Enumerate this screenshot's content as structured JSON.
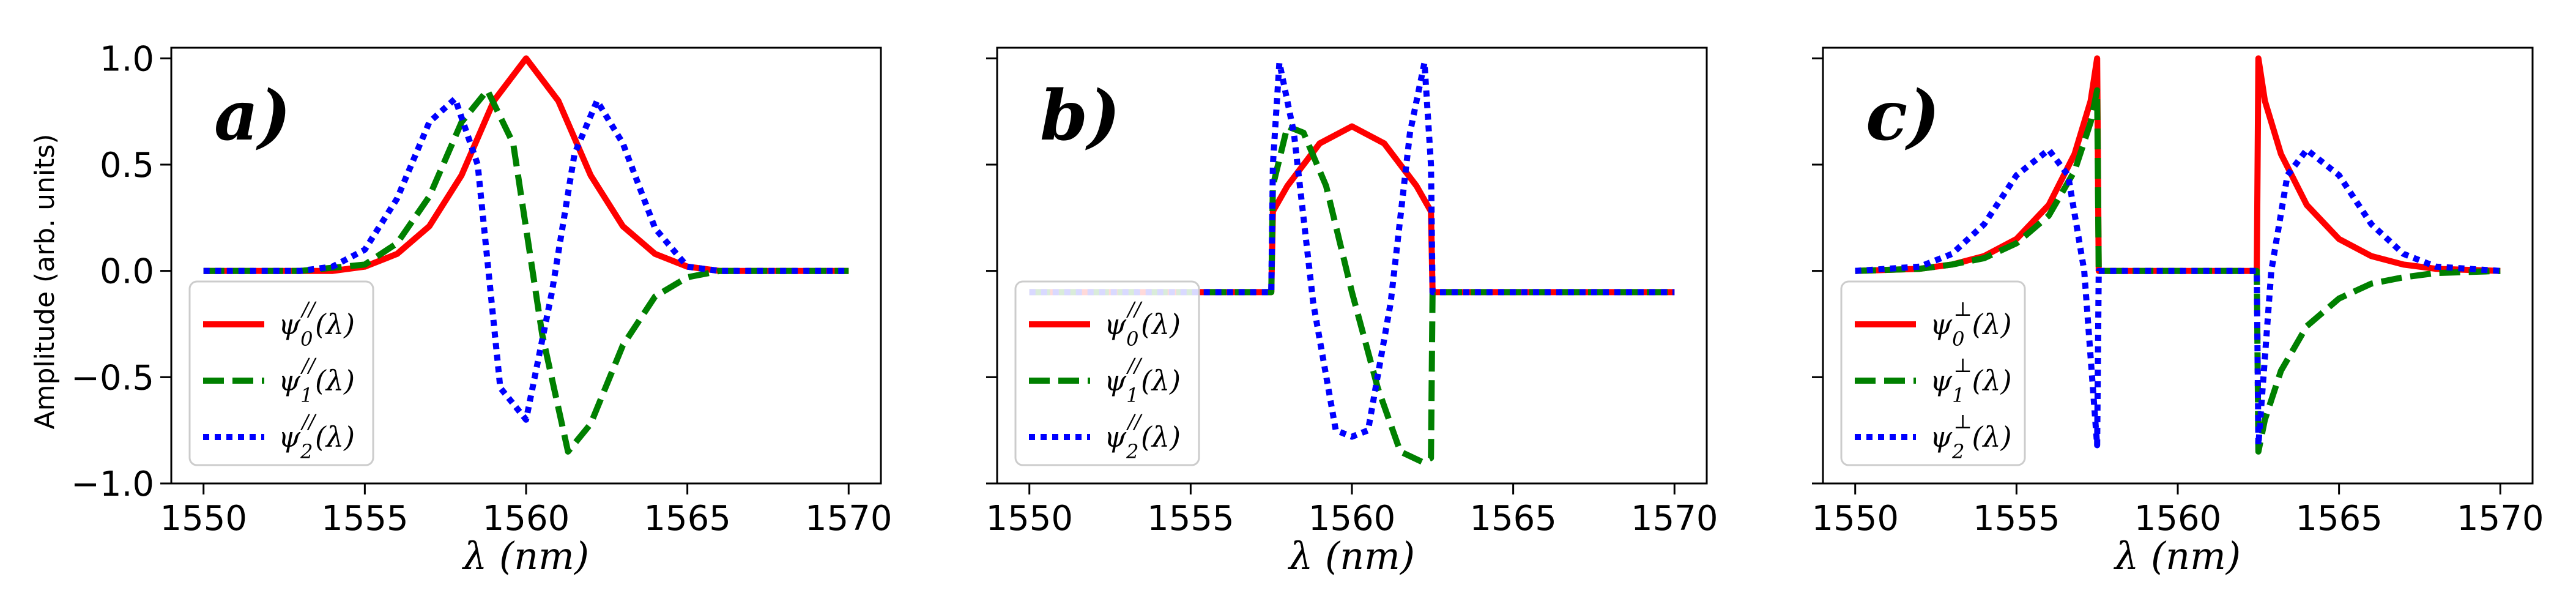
{
  "figure": {
    "ylabel": "Amplitude (arb. units)",
    "xlabel": "λ (nm)",
    "colors": {
      "red": "#ff0000",
      "green": "#008000",
      "blue": "#0000ff"
    }
  },
  "chart_data": [
    {
      "type": "line",
      "panel_label": "a)",
      "xlim": [
        1549,
        1571
      ],
      "ylim": [
        -1.0,
        1.05
      ],
      "xticks": [
        1550,
        1555,
        1560,
        1565,
        1570
      ],
      "yticks": [
        1.0,
        0.5,
        0.0,
        -0.5,
        -1.0
      ],
      "ytick_labels": [
        "1.0",
        "0.5",
        "0.0",
        "−0.5",
        "−1.0"
      ],
      "legend_placement": "lower-left",
      "series": [
        {
          "name": "ψ₀//(λ)",
          "style": "solid",
          "color": "#ff0000",
          "x": [
            1550,
            1552,
            1554,
            1555,
            1556,
            1557,
            1558,
            1559,
            1560,
            1561,
            1562,
            1563,
            1564,
            1565,
            1566,
            1568,
            1570
          ],
          "y": [
            0,
            0,
            0,
            0.02,
            0.08,
            0.21,
            0.45,
            0.8,
            1.0,
            0.8,
            0.45,
            0.21,
            0.08,
            0.02,
            0,
            0,
            0
          ]
        },
        {
          "name": "ψ₁//(λ)",
          "style": "dashed",
          "color": "#008000",
          "x": [
            1550,
            1553,
            1555,
            1556,
            1557,
            1558,
            1558.8,
            1559.6,
            1560.5,
            1561.3,
            1562,
            1563,
            1564,
            1565,
            1566,
            1568,
            1570
          ],
          "y": [
            0,
            0,
            0.03,
            0.13,
            0.35,
            0.7,
            0.85,
            0.6,
            -0.3,
            -0.85,
            -0.72,
            -0.35,
            -0.12,
            -0.03,
            0,
            0,
            0
          ]
        },
        {
          "name": "ψ₂//(λ)",
          "style": "dotted",
          "color": "#0000ff",
          "x": [
            1550,
            1553,
            1554,
            1555,
            1556,
            1557,
            1557.8,
            1558.5,
            1559.2,
            1560,
            1560.8,
            1561.5,
            1562.2,
            1563,
            1564,
            1565,
            1566,
            1570
          ],
          "y": [
            0,
            0,
            0.02,
            0.1,
            0.34,
            0.7,
            0.81,
            0.5,
            -0.55,
            -0.7,
            -0.1,
            0.55,
            0.8,
            0.6,
            0.2,
            0.02,
            0,
            0
          ]
        }
      ]
    },
    {
      "type": "line",
      "panel_label": "b)",
      "xlim": [
        1549,
        1571
      ],
      "ylim": [
        -1.0,
        1.05
      ],
      "xticks": [
        1550,
        1555,
        1560,
        1565,
        1570
      ],
      "yticks": [
        1.0,
        0.5,
        0.0,
        -0.5,
        -1.0
      ],
      "ytick_labels": [
        "",
        "",
        "",
        "",
        ""
      ],
      "legend_placement": "lower-left",
      "series": [
        {
          "name": "ψ₀//(λ)",
          "style": "solid",
          "color": "#ff0000",
          "x": [
            1550,
            1557.5,
            1557.55,
            1558,
            1559,
            1560,
            1561,
            1562,
            1562.45,
            1562.5,
            1570
          ],
          "y": [
            -0.1,
            -0.1,
            0.28,
            0.4,
            0.6,
            0.68,
            0.6,
            0.4,
            0.28,
            -0.1,
            -0.1
          ]
        },
        {
          "name": "ψ₁//(λ)",
          "style": "dashed",
          "color": "#008000",
          "x": [
            1550,
            1557.5,
            1557.55,
            1558,
            1558.5,
            1559.2,
            1560,
            1560.8,
            1561.5,
            1562.2,
            1562.45,
            1562.5,
            1570
          ],
          "y": [
            -0.1,
            -0.1,
            0.4,
            0.68,
            0.65,
            0.4,
            -0.1,
            -0.55,
            -0.85,
            -0.9,
            -0.88,
            -0.1,
            -0.1
          ]
        },
        {
          "name": "ψ₂//(λ)",
          "style": "dotted",
          "color": "#0000ff",
          "x": [
            1550,
            1557.5,
            1557.55,
            1557.75,
            1558.2,
            1558.8,
            1559.5,
            1560,
            1560.5,
            1561.2,
            1561.8,
            1562.25,
            1562.45,
            1562.5,
            1570
          ],
          "y": [
            -0.1,
            -0.1,
            0.5,
            0.98,
            0.65,
            -0.15,
            -0.75,
            -0.78,
            -0.75,
            -0.15,
            0.65,
            0.98,
            0.5,
            -0.1,
            -0.1
          ]
        }
      ]
    },
    {
      "type": "line",
      "panel_label": "c)",
      "xlim": [
        1549,
        1571
      ],
      "ylim": [
        -1.0,
        1.05
      ],
      "xticks": [
        1550,
        1555,
        1560,
        1565,
        1570
      ],
      "yticks": [
        1.0,
        0.5,
        0.0,
        -0.5,
        -1.0
      ],
      "ytick_labels": [
        "",
        "",
        "",
        "",
        ""
      ],
      "legend_placement": "lower-left",
      "series": [
        {
          "name": "ψ₀⊥(λ)",
          "style": "solid",
          "color": "#ff0000",
          "x": [
            1550,
            1552,
            1553,
            1554,
            1555,
            1556,
            1556.8,
            1557.3,
            1557.5,
            1557.55,
            1562.45,
            1562.5,
            1562.7,
            1563.2,
            1564,
            1565,
            1566,
            1567,
            1568,
            1570
          ],
          "y": [
            0,
            0.01,
            0.03,
            0.07,
            0.15,
            0.31,
            0.55,
            0.8,
            1.0,
            0,
            0,
            1.0,
            0.8,
            0.55,
            0.31,
            0.15,
            0.07,
            0.03,
            0.01,
            0
          ]
        },
        {
          "name": "ψ₁⊥(λ)",
          "style": "dashed",
          "color": "#008000",
          "x": [
            1550,
            1552,
            1553,
            1554,
            1555,
            1556,
            1556.8,
            1557.3,
            1557.5,
            1557.55,
            1562.45,
            1562.5,
            1562.7,
            1563.2,
            1564,
            1565,
            1566,
            1567,
            1568,
            1570
          ],
          "y": [
            0,
            0.01,
            0.03,
            0.06,
            0.13,
            0.26,
            0.47,
            0.7,
            0.85,
            0,
            0,
            -0.85,
            -0.7,
            -0.47,
            -0.26,
            -0.13,
            -0.06,
            -0.03,
            -0.01,
            0
          ]
        },
        {
          "name": "ψ₂⊥(λ)",
          "style": "dotted",
          "color": "#0000ff",
          "x": [
            1550,
            1552,
            1553,
            1554,
            1555,
            1556,
            1556.6,
            1557.1,
            1557.5,
            1557.55,
            1562.45,
            1562.5,
            1562.9,
            1563.4,
            1564,
            1565,
            1566,
            1567,
            1568,
            1570
          ],
          "y": [
            0,
            0.02,
            0.08,
            0.22,
            0.45,
            0.57,
            0.45,
            0.0,
            -0.82,
            0,
            0,
            -0.82,
            0.0,
            0.45,
            0.57,
            0.45,
            0.22,
            0.08,
            0.02,
            0
          ]
        }
      ]
    }
  ]
}
